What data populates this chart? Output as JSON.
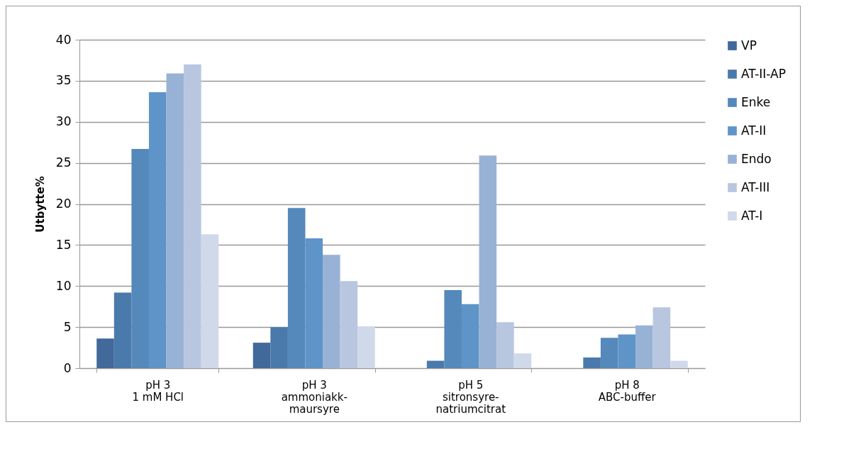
{
  "chart_data": {
    "type": "bar",
    "ylabel": "Utbytte%",
    "categories": [
      "pH 3\n1 mM HCl",
      "pH 3\nammoniakk-\nmaursyre",
      "pH 5\nsitronsyre-\nnatriumcitrat",
      "pH 8\nABC-buffer"
    ],
    "series": [
      {
        "name": "VP",
        "color": "#41699a",
        "values": [
          3.6,
          3.1,
          null,
          null
        ]
      },
      {
        "name": "AT-II-AP",
        "color": "#4a7aab",
        "values": [
          9.2,
          5.0,
          0.9,
          1.3
        ]
      },
      {
        "name": "Enke",
        "color": "#5588bb",
        "values": [
          26.7,
          19.5,
          9.5,
          3.7
        ]
      },
      {
        "name": "AT-II",
        "color": "#5e94c8",
        "values": [
          33.6,
          15.8,
          7.8,
          4.1
        ]
      },
      {
        "name": "Endo",
        "color": "#98b2d6",
        "values": [
          35.9,
          13.8,
          25.9,
          5.2
        ]
      },
      {
        "name": "AT-III",
        "color": "#b8c6e0",
        "values": [
          37.0,
          10.6,
          5.6,
          7.4
        ]
      },
      {
        "name": "AT-I",
        "color": "#d0d9ea",
        "values": [
          16.3,
          5.1,
          1.8,
          0.9
        ]
      }
    ],
    "ylim": [
      0,
      40
    ],
    "yticks": [
      0,
      5,
      10,
      15,
      20,
      25,
      30,
      35,
      40
    ],
    "grid": "y",
    "legend": "right"
  }
}
